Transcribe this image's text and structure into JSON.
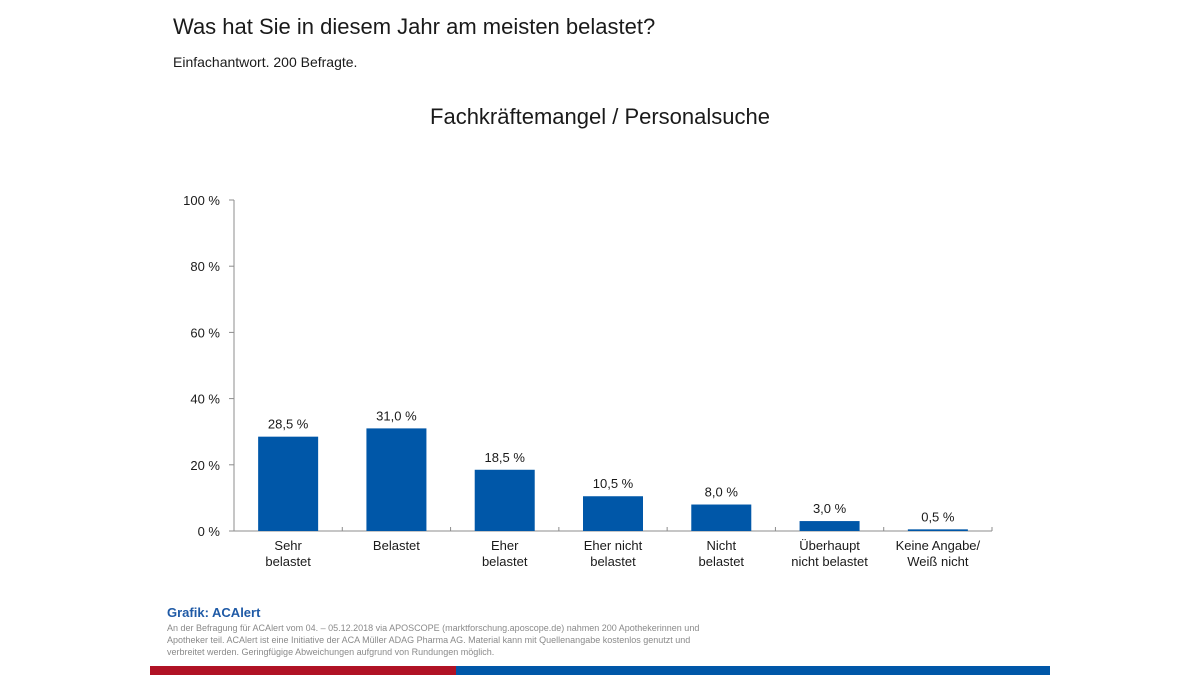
{
  "header": {
    "title": "Was hat Sie in diesem Jahr am meisten belastet?",
    "subtitle": "Einfachantwort. 200 Befragte."
  },
  "chart_data": {
    "type": "bar",
    "title": "Fachkräftemangel / Personalsuche",
    "xlabel": "",
    "ylabel": "",
    "ylim": [
      0,
      100
    ],
    "yticks": [
      0,
      20,
      40,
      60,
      80,
      100
    ],
    "ytick_labels": [
      "0 %",
      "20 %",
      "40 %",
      "60 %",
      "80 %",
      "100 %"
    ],
    "grid": false,
    "legend": "none",
    "bar_color": "#0057a8",
    "categories": [
      [
        "Sehr",
        "belastet"
      ],
      [
        "Belastet"
      ],
      [
        "Eher",
        "belastet"
      ],
      [
        "Eher nicht",
        "belastet"
      ],
      [
        "Nicht",
        "belastet"
      ],
      [
        "Überhaupt",
        "nicht belastet"
      ],
      [
        "Keine Angabe/",
        "Weiß nicht"
      ]
    ],
    "values": [
      28.5,
      31.0,
      18.5,
      10.5,
      8.0,
      3.0,
      0.5
    ],
    "value_labels": [
      "28,5 %",
      "31,0 %",
      "18,5 %",
      "10,5 %",
      "8,0 %",
      "3,0 %",
      "0,5 %"
    ]
  },
  "footer": {
    "source_title": "Grafik: ACAlert",
    "source_text": "An der Befragung für ACAlert vom 04. – 05.12.2018 via APOSCOPE (marktforschung.aposcope.de) nahmen 200 Apothekerinnen und Apotheker teil. ACAlert ist eine Initiative der ACA Müller ADAG Pharma AG. Material kann mit Quellenangabe kostenlos genutzt und verbreitet werden. Geringfügige Abweichungen aufgrund von Rundungen möglich.",
    "colors": {
      "red": "#b01225",
      "blue": "#0057a8"
    }
  }
}
